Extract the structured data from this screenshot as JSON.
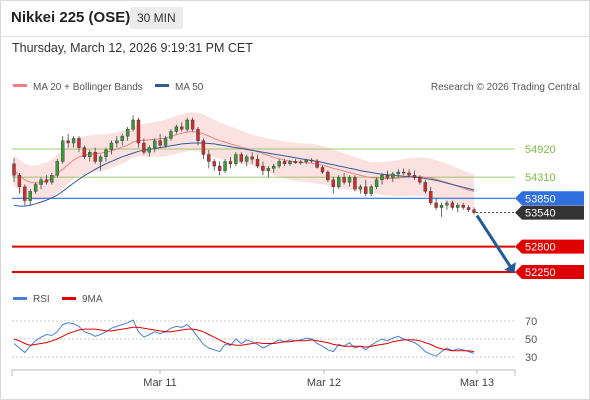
{
  "header": {
    "title": "Nikkei 225 (OSE)",
    "timeframe": "30 MIN"
  },
  "datetime": "Thursday, March 12, 2026 9:19:31 PM CET",
  "copyright": "Research © 2026 Trading Central",
  "chart_data": [
    {
      "type": "candlestick",
      "legend": [
        {
          "name": "MA 20 + Bollinger Bands",
          "color": "#f08080"
        },
        {
          "name": "MA 50",
          "color": "#2e5a9c"
        }
      ],
      "price_labels": [
        {
          "value": 54920,
          "label": "54920",
          "kind": "resistance",
          "color": "#7dbb42"
        },
        {
          "value": 54310,
          "label": "54310",
          "kind": "resistance",
          "color": "#7dbb42"
        },
        {
          "value": 53850,
          "label": "53850",
          "kind": "pivot",
          "color": "#2f6fe0"
        },
        {
          "value": 53540,
          "label": "53540",
          "kind": "last",
          "color": "#333333"
        },
        {
          "value": 52800,
          "label": "52800",
          "kind": "support",
          "color": "#e00000"
        },
        {
          "value": 52250,
          "label": "52250",
          "kind": "support",
          "color": "#e00000"
        }
      ],
      "x_ticks": [
        "Mar 11",
        "Mar 12",
        "Mar 13"
      ],
      "ylim": [
        51950,
        56000
      ],
      "candles": [
        [
          54600,
          54720,
          54200,
          54350
        ],
        [
          54350,
          54400,
          53950,
          54100
        ],
        [
          54100,
          54150,
          53700,
          53800
        ],
        [
          53800,
          54050,
          53700,
          54000
        ],
        [
          54000,
          54200,
          53950,
          54150
        ],
        [
          54150,
          54300,
          54050,
          54250
        ],
        [
          54250,
          54350,
          54150,
          54200
        ],
        [
          54200,
          54400,
          54150,
          54350
        ],
        [
          54350,
          54700,
          54300,
          54650
        ],
        [
          54650,
          55200,
          54600,
          55100
        ],
        [
          55100,
          55250,
          54950,
          55050
        ],
        [
          55050,
          55200,
          54950,
          55150
        ],
        [
          55150,
          55200,
          54850,
          54950
        ],
        [
          54950,
          55000,
          54700,
          54750
        ],
        [
          54750,
          54900,
          54650,
          54850
        ],
        [
          54850,
          54950,
          54600,
          54650
        ],
        [
          54650,
          54800,
          54450,
          54750
        ],
        [
          54750,
          54950,
          54650,
          54900
        ],
        [
          54900,
          55100,
          54800,
          55050
        ],
        [
          55050,
          55200,
          54950,
          55100
        ],
        [
          55100,
          55250,
          55000,
          55200
        ],
        [
          55200,
          55400,
          55100,
          55350
        ],
        [
          55350,
          55650,
          55300,
          55550
        ],
        [
          55550,
          55600,
          54950,
          55050
        ],
        [
          55050,
          55150,
          54800,
          54850
        ],
        [
          54850,
          55000,
          54750,
          54950
        ],
        [
          54950,
          55150,
          54850,
          55100
        ],
        [
          55100,
          55250,
          54950,
          55000
        ],
        [
          55000,
          55200,
          54950,
          55150
        ],
        [
          55150,
          55350,
          55100,
          55300
        ],
        [
          55300,
          55450,
          55250,
          55400
        ],
        [
          55400,
          55500,
          55300,
          55350
        ],
        [
          55350,
          55600,
          55300,
          55550
        ],
        [
          55550,
          55600,
          55300,
          55350
        ],
        [
          55350,
          55400,
          55000,
          55100
        ],
        [
          55100,
          55150,
          54700,
          54800
        ],
        [
          54800,
          54900,
          54500,
          54650
        ],
        [
          54650,
          54700,
          54450,
          54550
        ],
        [
          54550,
          54650,
          54350,
          54450
        ],
        [
          54450,
          54700,
          54400,
          54650
        ],
        [
          54650,
          54750,
          54500,
          54600
        ],
        [
          54600,
          54850,
          54550,
          54800
        ],
        [
          54800,
          54850,
          54600,
          54650
        ],
        [
          54650,
          54800,
          54550,
          54750
        ],
        [
          54750,
          54850,
          54600,
          54700
        ],
        [
          54700,
          54800,
          54500,
          54550
        ],
        [
          54550,
          54650,
          54350,
          54450
        ],
        [
          54450,
          54550,
          54300,
          54500
        ],
        [
          54500,
          54600,
          54400,
          54550
        ],
        [
          54550,
          54700,
          54500,
          54650
        ],
        [
          54650,
          54700,
          54550,
          54600
        ],
        [
          54600,
          54680,
          54550,
          54650
        ],
        [
          54650,
          54700,
          54600,
          54620
        ],
        [
          54620,
          54680,
          54580,
          54640
        ],
        [
          54640,
          54700,
          54600,
          54680
        ],
        [
          54680,
          54720,
          54620,
          54660
        ],
        [
          54660,
          54700,
          54500,
          54520
        ],
        [
          54520,
          54560,
          54380,
          54420
        ],
        [
          54420,
          54460,
          54200,
          54250
        ],
        [
          54250,
          54320,
          53950,
          54100
        ],
        [
          54100,
          54350,
          54050,
          54300
        ],
        [
          54300,
          54400,
          54150,
          54200
        ],
        [
          54200,
          54350,
          54100,
          54300
        ],
        [
          54300,
          54350,
          54000,
          54050
        ],
        [
          54050,
          54150,
          53950,
          54100
        ],
        [
          54100,
          54250,
          53900,
          53950
        ],
        [
          53950,
          54150,
          53900,
          54100
        ],
        [
          54100,
          54300,
          54050,
          54250
        ],
        [
          54250,
          54400,
          54150,
          54350
        ],
        [
          54350,
          54450,
          54250,
          54300
        ],
        [
          54300,
          54420,
          54200,
          54380
        ],
        [
          54380,
          54480,
          54300,
          54420
        ],
        [
          54420,
          54500,
          54350,
          54400
        ],
        [
          54400,
          54480,
          54300,
          54350
        ],
        [
          54350,
          54450,
          54250,
          54300
        ],
        [
          54300,
          54350,
          54150,
          54200
        ],
        [
          54200,
          54250,
          53950,
          54000
        ],
        [
          54000,
          54100,
          53700,
          53750
        ],
        [
          53750,
          53850,
          53600,
          53650
        ],
        [
          53650,
          53750,
          53450,
          53700
        ],
        [
          53700,
          53800,
          53600,
          53750
        ],
        [
          53750,
          53800,
          53600,
          53650
        ],
        [
          53650,
          53750,
          53550,
          53700
        ],
        [
          53700,
          53750,
          53600,
          53650
        ],
        [
          53650,
          53700,
          53550,
          53600
        ],
        [
          53600,
          53650,
          53500,
          53540
        ]
      ],
      "ma20": [
        54450,
        54350,
        54250,
        54200,
        54180,
        54200,
        54230,
        54280,
        54380,
        54480,
        54580,
        54680,
        54750,
        54780,
        54800,
        54820,
        54830,
        54850,
        54880,
        54920,
        54960,
        55000,
        55070,
        55100,
        55110,
        55120,
        55130,
        55140,
        55160,
        55190,
        55230,
        55260,
        55290,
        55300,
        55280,
        55250,
        55200,
        55150,
        55100,
        55070,
        55030,
        55000,
        54960,
        54930,
        54900,
        54860,
        54820,
        54780,
        54740,
        54710,
        54680,
        54660,
        54640,
        54630,
        54620,
        54610,
        54590,
        54570,
        54540,
        54500,
        54470,
        54440,
        54410,
        54380,
        54350,
        54320,
        54300,
        54290,
        54280,
        54280,
        54280,
        54290,
        54300,
        54310,
        54320,
        54320,
        54310,
        54290,
        54260,
        54230,
        54190,
        54150,
        54110,
        54070,
        54030,
        54000
      ],
      "ma50": [
        53700,
        53680,
        53680,
        53700,
        53730,
        53770,
        53810,
        53860,
        53920,
        54000,
        54090,
        54180,
        54260,
        54340,
        54410,
        54480,
        54540,
        54600,
        54650,
        54700,
        54750,
        54790,
        54830,
        54870,
        54890,
        54910,
        54930,
        54950,
        54970,
        54990,
        55010,
        55030,
        55040,
        55050,
        55050,
        55050,
        55040,
        55030,
        55010,
        54990,
        54970,
        54950,
        54930,
        54910,
        54890,
        54870,
        54850,
        54830,
        54810,
        54790,
        54770,
        54750,
        54730,
        54710,
        54690,
        54670,
        54650,
        54630,
        54600,
        54580,
        54550,
        54530,
        54500,
        54480,
        54450,
        54430,
        54410,
        54390,
        54370,
        54360,
        54350,
        54340,
        54330,
        54320,
        54310,
        54300,
        54280,
        54260,
        54240,
        54210,
        54180,
        54150,
        54120,
        54090,
        54060,
        54030
      ],
      "projection": {
        "from": 53540,
        "to": 52250
      }
    },
    {
      "type": "line",
      "legend": [
        {
          "name": "RSI",
          "color": "#4a7fd8"
        },
        {
          "name": "9MA",
          "color": "#e00000"
        }
      ],
      "y_ticks": [
        70,
        50,
        30
      ],
      "ylim": [
        20,
        80
      ],
      "rsi": [
        45,
        40,
        35,
        42,
        48,
        52,
        55,
        54,
        58,
        66,
        68,
        67,
        64,
        58,
        56,
        53,
        55,
        58,
        62,
        64,
        66,
        68,
        71,
        58,
        52,
        55,
        58,
        56,
        58,
        62,
        64,
        63,
        66,
        60,
        52,
        44,
        40,
        38,
        36,
        44,
        43,
        50,
        45,
        49,
        47,
        44,
        40,
        43,
        46,
        49,
        47,
        49,
        48,
        49,
        51,
        50,
        45,
        42,
        38,
        36,
        44,
        42,
        46,
        40,
        42,
        38,
        43,
        47,
        50,
        48,
        51,
        53,
        50,
        48,
        46,
        42,
        36,
        33,
        31,
        36,
        40,
        37,
        39,
        38,
        36,
        34
      ],
      "ma9": [
        50,
        48,
        45,
        43,
        44,
        45,
        46,
        48,
        50,
        53,
        56,
        58,
        60,
        61,
        61,
        61,
        60,
        59,
        59,
        60,
        61,
        62,
        63,
        63,
        62,
        61,
        60,
        59,
        58,
        58,
        59,
        60,
        61,
        61,
        60,
        58,
        55,
        52,
        49,
        46,
        44,
        43,
        43,
        44,
        45,
        46,
        45,
        45,
        45,
        46,
        47,
        47,
        48,
        48,
        48,
        49,
        48,
        47,
        46,
        44,
        43,
        42,
        42,
        42,
        42,
        41,
        42,
        43,
        44,
        45,
        47,
        48,
        49,
        49,
        49,
        48,
        46,
        44,
        41,
        39,
        38,
        37,
        37,
        37,
        37,
        36
      ]
    }
  ]
}
